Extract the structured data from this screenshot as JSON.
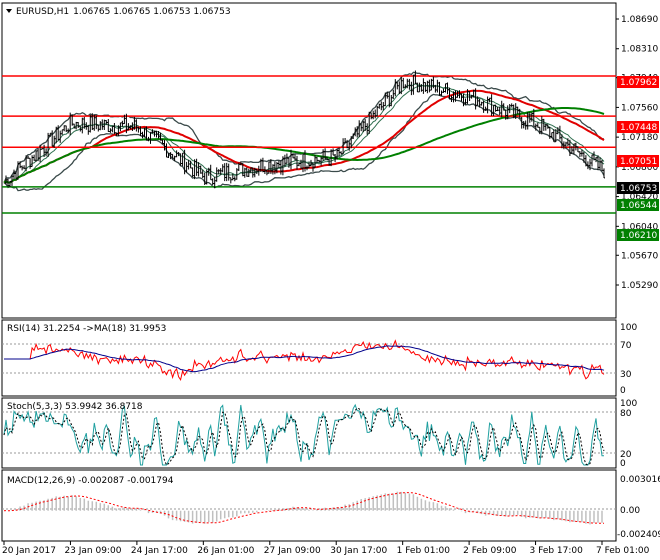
{
  "header": {
    "symbol": "EURUSD,H1",
    "ohlc": "1.06765 1.06765 1.06753 1.06753"
  },
  "colors": {
    "support": "#008000",
    "resistance": "#ff0000",
    "price": "#000000",
    "bollinger": "#3a4a4a",
    "ma_fast": "#2f6f4f",
    "ma_mid": "#e00000",
    "ma_slow": "#008000",
    "rsi": "#ff0000",
    "rsi_ma": "#00008b",
    "stoch_main": "#20a0a0",
    "stoch_signal": "#000000",
    "macd_hist": "#c0c0c0",
    "macd_signal": "#ff0000",
    "current_price_bg": "#000000"
  },
  "price_axis": {
    "ticks": [
      "1.08690",
      "1.08310",
      "1.07940",
      "1.07560",
      "1.07180",
      "1.06800",
      "1.06420",
      "1.06040",
      "1.05670",
      "1.05290"
    ]
  },
  "level_labels": {
    "r1": "1.07962",
    "r2": "1.07448",
    "r3": "1.07051",
    "current": "1.06753",
    "s1": "1.06544",
    "s2": "1.06210"
  },
  "rsi": {
    "label": "RSI(14) 31.2254  ->MA(18) 31.9953",
    "ticks": [
      "100",
      "70",
      "30",
      "0"
    ]
  },
  "stoch": {
    "label": "Stoch(5,3,3) 53.9942 36.8718",
    "ticks": [
      "100",
      "80",
      "20",
      "0"
    ]
  },
  "macd": {
    "label": "MACD(12,26,9) -0.002087 -0.001794",
    "ticks": [
      "0.003016",
      "0.00",
      "-0.002409"
    ]
  },
  "time_axis": {
    "labels": [
      "20 Jan 2017",
      "23 Jan 09:00",
      "24 Jan 17:00",
      "26 Jan 01:00",
      "27 Jan 09:00",
      "30 Jan 17:00",
      "1 Feb 01:00",
      "2 Feb 09:00",
      "3 Feb 17:00",
      "7 Feb 01:00"
    ]
  },
  "chart_data": {
    "type": "line",
    "title": "EURUSD,H1",
    "x": [
      "20 Jan 2017",
      "23 Jan 09:00",
      "24 Jan 17:00",
      "26 Jan 01:00",
      "27 Jan 09:00",
      "30 Jan 17:00",
      "1 Feb 01:00",
      "2 Feb 09:00",
      "3 Feb 17:00",
      "7 Feb 01:00"
    ],
    "ylim": [
      1.0529,
      1.0869
    ],
    "series": [
      {
        "name": "EURUSD",
        "values": [
          1.066,
          1.0736,
          1.0731,
          1.0667,
          1.0684,
          1.0692,
          1.079,
          1.077,
          1.0735,
          1.0675
        ]
      }
    ],
    "levels": [
      1.07962,
      1.07448,
      1.07051,
      1.06544,
      1.0621
    ],
    "current_price": 1.06753,
    "rsi": {
      "value": 31.2254,
      "ma": 31.9953,
      "levels": [
        70,
        30
      ]
    },
    "stochastic": {
      "main": 53.9942,
      "signal": 36.8718,
      "levels": [
        80,
        20
      ]
    },
    "macd": {
      "main": -0.002087,
      "signal": -0.001794
    }
  }
}
